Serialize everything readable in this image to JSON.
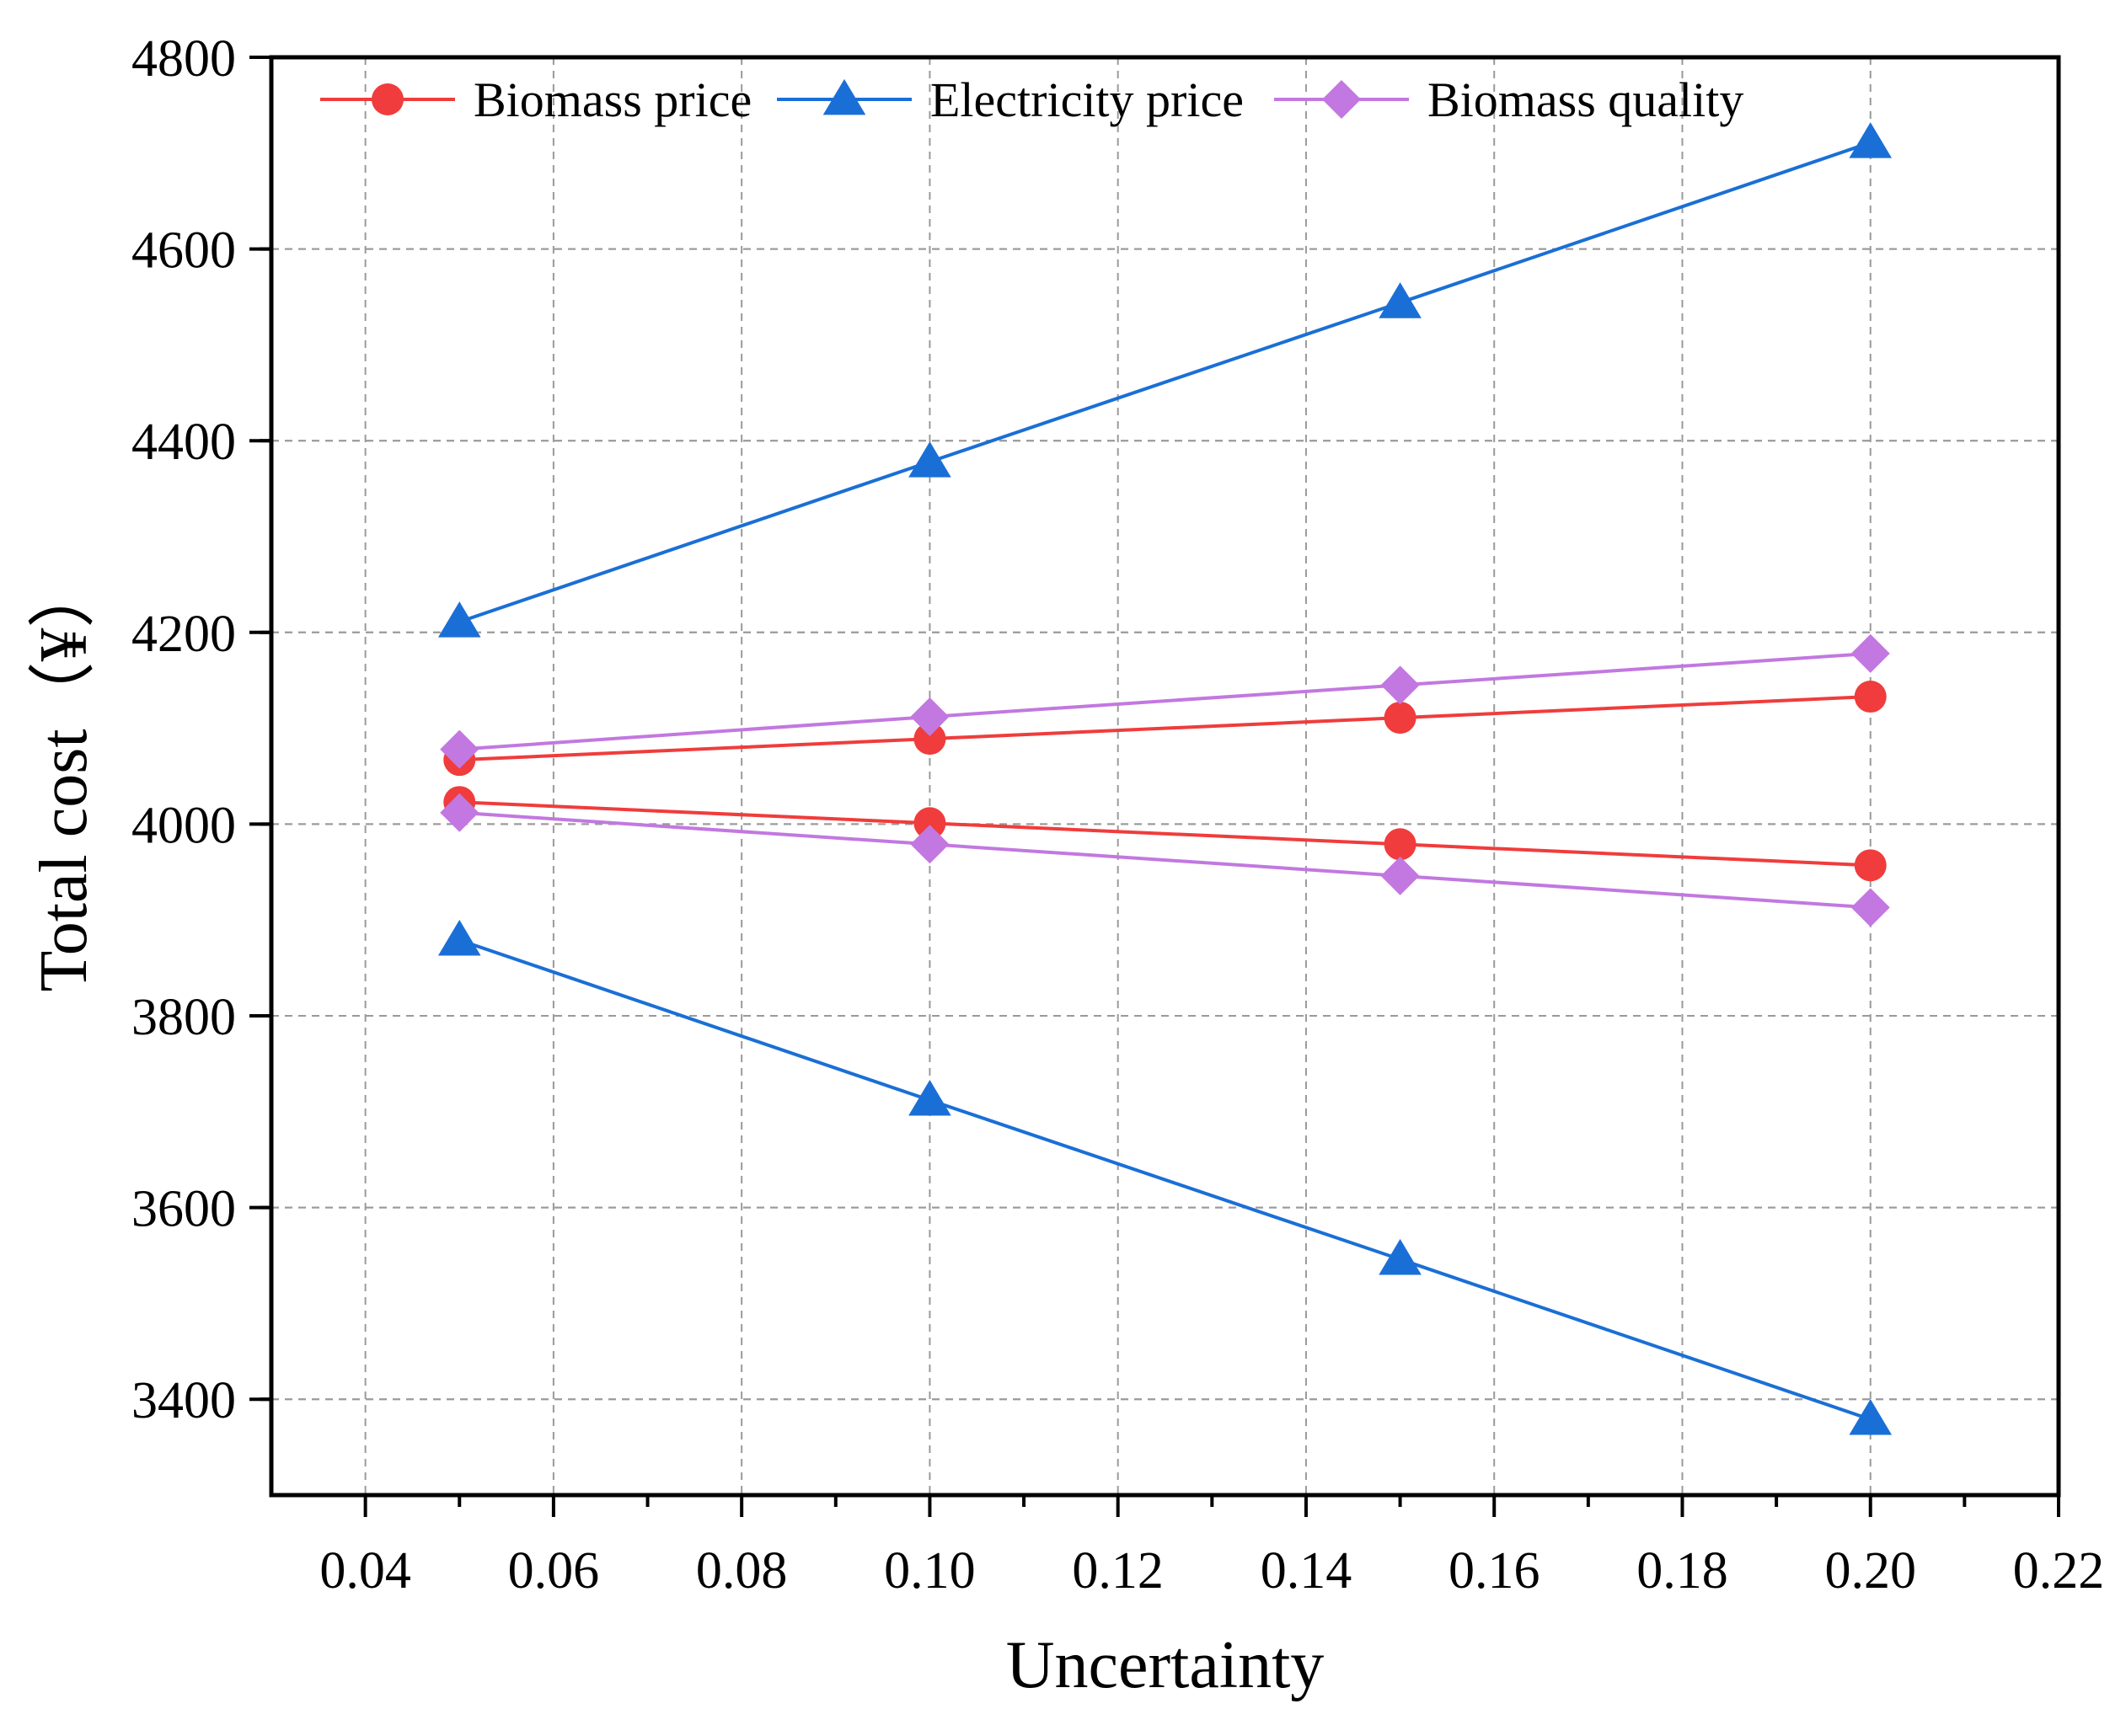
{
  "chart_data": {
    "type": "line",
    "xlabel": "Uncertainty",
    "ylabel": "Total cost（¥）",
    "xlim": [
      0.03,
      0.22
    ],
    "ylim": [
      3300,
      4800
    ],
    "x_ticks": [
      0.04,
      0.06,
      0.08,
      0.1,
      0.12,
      0.14,
      0.16,
      0.18,
      0.2,
      0.22
    ],
    "x_tick_labels": [
      "0.04",
      "0.06",
      "0.08",
      "0.10",
      "0.12",
      "0.14",
      "0.16",
      "0.18",
      "0.20",
      "0.22"
    ],
    "y_ticks": [
      3400,
      3600,
      3800,
      4000,
      4200,
      4400,
      4600,
      4800
    ],
    "y_tick_labels": [
      "3400",
      "3600",
      "3800",
      "4000",
      "4200",
      "4400",
      "4600",
      "4800"
    ],
    "grid": true,
    "legend_position": "top",
    "series": [
      {
        "name": "Biomass price",
        "color": "#f03c3c",
        "marker": "circle",
        "lines": [
          {
            "x": [
              0.05,
              0.1,
              0.15,
              0.2
            ],
            "y": [
              4067,
              4089,
              4111,
              4133
            ]
          },
          {
            "x": [
              0.05,
              0.1,
              0.15,
              0.2
            ],
            "y": [
              4023,
              4001,
              3979,
              3957
            ]
          }
        ]
      },
      {
        "name": "Electricity price",
        "color": "#1a6fd6",
        "marker": "triangle",
        "lines": [
          {
            "x": [
              0.05,
              0.1,
              0.15,
              0.2
            ],
            "y": [
              4211,
              4378,
              4544,
              4711
            ]
          },
          {
            "x": [
              0.05,
              0.1,
              0.15,
              0.2
            ],
            "y": [
              3879,
              3712,
              3546,
              3379
            ]
          }
        ]
      },
      {
        "name": "Biomass quality",
        "color": "#c278e0",
        "marker": "diamond",
        "lines": [
          {
            "x": [
              0.05,
              0.1,
              0.15,
              0.2
            ],
            "y": [
              4078,
              4112,
              4145,
              4178
            ]
          },
          {
            "x": [
              0.05,
              0.1,
              0.15,
              0.2
            ],
            "y": [
              4012,
              3979,
              3946,
              3913
            ]
          }
        ]
      }
    ]
  }
}
